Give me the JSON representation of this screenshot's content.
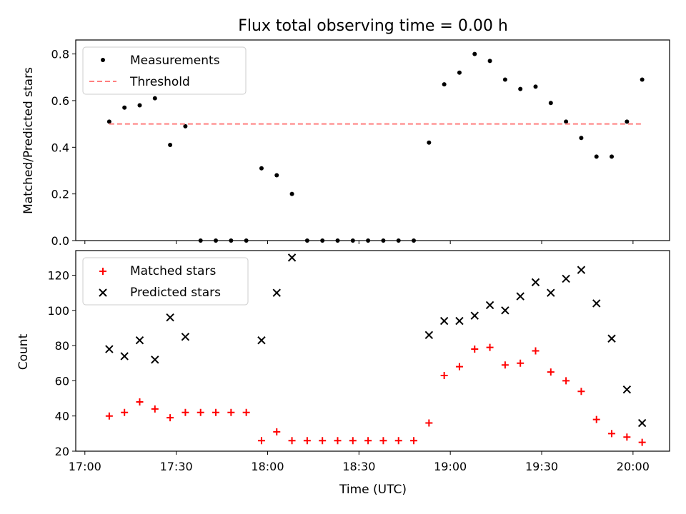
{
  "title": "Flux total observing time = 0.00 h",
  "chart_data": [
    {
      "type": "scatter",
      "ylabel": "Matched/Predicted stars",
      "xlabel": "",
      "ylim": [
        0,
        0.86
      ],
      "yticks": [
        "0.0",
        "0.2",
        "0.4",
        "0.6",
        "0.8"
      ],
      "legend_position": "upper-left",
      "series": [
        {
          "name": "Measurements",
          "marker": "dot",
          "color": "#000000",
          "x": [
            "17:08",
            "17:13",
            "17:18",
            "17:23",
            "17:28",
            "17:33",
            "17:38",
            "17:43",
            "17:48",
            "17:53",
            "17:58",
            "18:03",
            "18:08",
            "18:13",
            "18:18",
            "18:23",
            "18:28",
            "18:33",
            "18:38",
            "18:43",
            "18:48",
            "18:53",
            "18:58",
            "19:03",
            "19:08",
            "19:13",
            "19:18",
            "19:23",
            "19:28",
            "19:33",
            "19:38",
            "19:43",
            "19:48",
            "19:53",
            "19:58",
            "20:03"
          ],
          "y": [
            0.51,
            0.57,
            0.58,
            0.61,
            0.41,
            0.49,
            0.0,
            0.0,
            0.0,
            0.0,
            0.31,
            0.28,
            0.2,
            0.0,
            0.0,
            0.0,
            0.0,
            0.0,
            0.0,
            0.0,
            0.0,
            0.42,
            0.67,
            0.72,
            0.8,
            0.77,
            0.69,
            0.65,
            0.66,
            0.59,
            0.51,
            0.44,
            0.36,
            0.36,
            0.51,
            0.69
          ]
        },
        {
          "name": "Threshold",
          "marker": "dashed-line",
          "color": "#ff7f7f",
          "x": [
            "17:08",
            "20:03"
          ],
          "y": [
            0.5,
            0.5
          ]
        }
      ]
    },
    {
      "type": "scatter",
      "ylabel": "Count",
      "xlabel": "Time (UTC)",
      "ylim": [
        20,
        134
      ],
      "yticks": [
        "20",
        "40",
        "60",
        "80",
        "100",
        "120"
      ],
      "xticks": [
        "17:00",
        "17:30",
        "18:00",
        "18:30",
        "19:00",
        "19:30",
        "20:00"
      ],
      "legend_position": "upper-left",
      "series": [
        {
          "name": "Matched stars",
          "marker": "plus",
          "color": "#ff0000",
          "x": [
            "17:08",
            "17:13",
            "17:18",
            "17:23",
            "17:28",
            "17:33",
            "17:38",
            "17:43",
            "17:48",
            "17:53",
            "17:58",
            "18:03",
            "18:08",
            "18:13",
            "18:18",
            "18:23",
            "18:28",
            "18:33",
            "18:38",
            "18:43",
            "18:48",
            "18:53",
            "18:58",
            "19:03",
            "19:08",
            "19:13",
            "19:18",
            "19:23",
            "19:28",
            "19:33",
            "19:38",
            "19:43",
            "19:48",
            "19:53",
            "19:58",
            "20:03"
          ],
          "y": [
            40,
            42,
            48,
            44,
            39,
            42,
            42,
            42,
            42,
            42,
            26,
            31,
            26,
            26,
            26,
            26,
            26,
            26,
            26,
            26,
            26,
            36,
            63,
            68,
            78,
            79,
            69,
            70,
            77,
            65,
            60,
            54,
            38,
            30,
            28,
            25
          ]
        },
        {
          "name": "Predicted stars",
          "marker": "x",
          "color": "#000000",
          "x": [
            "17:08",
            "17:13",
            "17:18",
            "17:23",
            "17:28",
            "17:33",
            "17:58",
            "18:03",
            "18:08",
            "18:53",
            "18:58",
            "19:03",
            "19:08",
            "19:13",
            "19:18",
            "19:23",
            "19:28",
            "19:33",
            "19:38",
            "19:43",
            "19:48",
            "19:53",
            "19:58",
            "20:03"
          ],
          "y": [
            78,
            74,
            83,
            72,
            96,
            85,
            83,
            110,
            130,
            86,
            94,
            94,
            97,
            103,
            100,
            108,
            116,
            110,
            118,
            123,
            104,
            84,
            55,
            36
          ]
        }
      ]
    }
  ]
}
